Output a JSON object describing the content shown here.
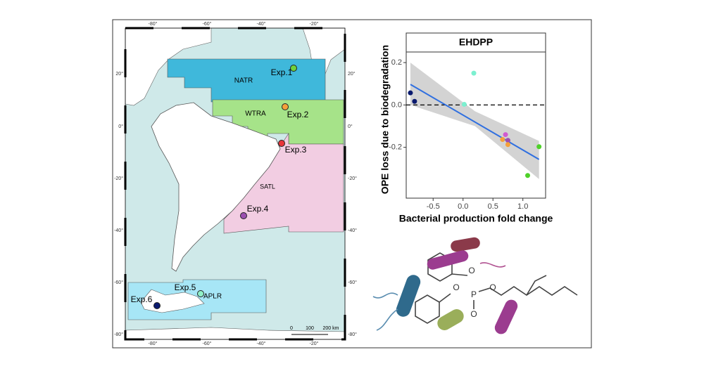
{
  "map": {
    "lon_ticks": [
      "-80°",
      "-60°",
      "-40°",
      "-20°"
    ],
    "lat_ticks": [
      "20°",
      "0°",
      "-20°",
      "-40°",
      "-60°",
      "-80°"
    ],
    "regions": [
      "NATR",
      "WTRA",
      "SATL",
      "APLR"
    ],
    "sites": [
      "Exp.1",
      "Exp.2",
      "Exp.3",
      "Exp.4",
      "Exp.5",
      "Exp.6"
    ],
    "site_colors": [
      "#6fd13a",
      "#f5a03a",
      "#e8343a",
      "#9b4fb0",
      "#8ff0c8",
      "#0a1a6e"
    ],
    "scale": [
      "0",
      "100",
      "200 km"
    ]
  },
  "chart_data": {
    "type": "scatter",
    "title": "EHDPP",
    "ylabel": "OPE loss due to biodegradation",
    "xlabel": "Bacterial production fold change",
    "x": [
      -0.88,
      -0.81,
      0.18,
      0.02,
      0.71,
      0.66,
      0.75,
      0.75,
      1.27,
      1.08
    ],
    "y": [
      0.057,
      0.017,
      0.15,
      0.003,
      -0.14,
      -0.163,
      -0.167,
      -0.187,
      -0.197,
      -0.333
    ],
    "colors": [
      "#0a1a6e",
      "#0a1a6e",
      "#7cf0d0",
      "#7cf0d0",
      "#d05ad0",
      "#f5a03a",
      "#9b4fb0",
      "#f5a03a",
      "#4fd12a",
      "#4fd12a"
    ],
    "fit": {
      "x": [
        -0.88,
        1.27
      ],
      "y": [
        0.097,
        -0.257
      ],
      "color": "#2f6fe0"
    },
    "band": {
      "x": [
        -0.88,
        0.2,
        1.27
      ],
      "upper": [
        0.2,
        -0.03,
        -0.17
      ],
      "lower": [
        0.0,
        -0.1,
        -0.35
      ],
      "color": "#c8c8c8"
    },
    "reference_y": 0,
    "xlim": [
      -0.95,
      1.38
    ],
    "ylim": [
      -0.44,
      0.25
    ],
    "xticks": [
      -0.5,
      {
        "value": 0,
        "label": "0.0"
      },
      0.5,
      {
        "value": 1,
        "label": "1.0"
      }
    ],
    "yticks": [
      0.2,
      {
        "value": 0,
        "label": "0.0"
      },
      -0.2
    ]
  },
  "illustration": {
    "atoms": [
      "O",
      "O",
      "P",
      "O",
      "O"
    ]
  }
}
